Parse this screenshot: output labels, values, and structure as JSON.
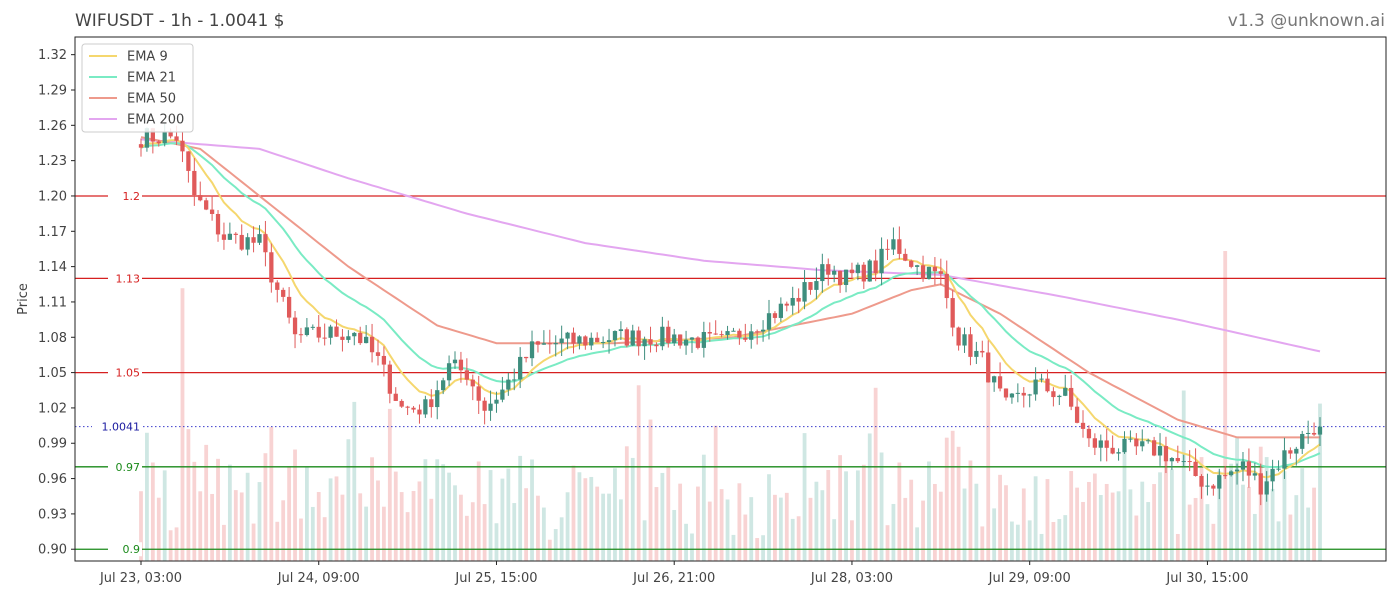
{
  "header": {
    "title": "WIFUSDT - 1h - 1.0041 $",
    "brand": "v1.3 @unknown.ai"
  },
  "chart_data": {
    "type": "candlestick",
    "symbol": "WIFUSDT",
    "interval": "1h",
    "last_price": 1.0041,
    "last_price_label": "1.0041",
    "ylabel": "Price",
    "ylim": [
      0.89,
      1.335
    ],
    "y_ticks": [
      "0.90",
      "0.93",
      "0.96",
      "0.99",
      "1.02",
      "1.05",
      "1.08",
      "1.11",
      "1.14",
      "1.17",
      "1.20",
      "1.23",
      "1.26",
      "1.29",
      "1.32"
    ],
    "x_ticks": [
      {
        "index": 0,
        "label": "Jul 23, 03:00"
      },
      {
        "index": 30,
        "label": "Jul 24, 09:00"
      },
      {
        "index": 60,
        "label": "Jul 25, 15:00"
      },
      {
        "index": 90,
        "label": "Jul 26, 21:00"
      },
      {
        "index": 120,
        "label": "Jul 28, 03:00"
      },
      {
        "index": 150,
        "label": "Jul 29, 09:00"
      },
      {
        "index": 180,
        "label": "Jul 30, 15:00"
      }
    ],
    "candle_count": 200,
    "legend": [
      {
        "name": "EMA 9",
        "color": "#f5d76e"
      },
      {
        "name": "EMA 21",
        "color": "#7aebc4"
      },
      {
        "name": "EMA 50",
        "color": "#ee9a8c"
      },
      {
        "name": "EMA 200",
        "color": "#e3a6f0"
      }
    ],
    "levels": [
      {
        "value": 1.2,
        "label": "1.2",
        "color": "#d62020"
      },
      {
        "value": 1.13,
        "label": "1.13",
        "color": "#d62020"
      },
      {
        "value": 1.05,
        "label": "1.05",
        "color": "#d62020"
      },
      {
        "value": 0.97,
        "label": "0.97",
        "color": "#1a8a1a"
      },
      {
        "value": 0.9,
        "label": "0.9",
        "color": "#1a8a1a"
      }
    ],
    "colors": {
      "up": "#3e8e7e",
      "down": "#e05a5a",
      "vol_up": "#cfe7e3",
      "vol_down": "#f8d3d3",
      "last_line": "#3b3bcc"
    },
    "close_path": [
      [
        0,
        1.25
      ],
      [
        6,
        1.25
      ],
      [
        9,
        1.2
      ],
      [
        14,
        1.165
      ],
      [
        20,
        1.16
      ],
      [
        26,
        1.08
      ],
      [
        36,
        1.085
      ],
      [
        40,
        1.06
      ],
      [
        44,
        1.02
      ],
      [
        48,
        1.02
      ],
      [
        52,
        1.055
      ],
      [
        55,
        1.05
      ],
      [
        58,
        1.02
      ],
      [
        61,
        1.035
      ],
      [
        66,
        1.07
      ],
      [
        70,
        1.075
      ],
      [
        80,
        1.08
      ],
      [
        90,
        1.08
      ],
      [
        98,
        1.075
      ],
      [
        110,
        1.11
      ],
      [
        116,
        1.14
      ],
      [
        119,
        1.13
      ],
      [
        124,
        1.14
      ],
      [
        127,
        1.16
      ],
      [
        131,
        1.14
      ],
      [
        135,
        1.13
      ],
      [
        138,
        1.08
      ],
      [
        142,
        1.06
      ],
      [
        146,
        1.02
      ],
      [
        151,
        1.04
      ],
      [
        156,
        1.03
      ],
      [
        160,
        0.99
      ],
      [
        166,
        0.985
      ],
      [
        172,
        0.985
      ],
      [
        176,
        0.97
      ],
      [
        180,
        0.955
      ],
      [
        186,
        0.97
      ],
      [
        189,
        0.955
      ],
      [
        193,
        0.98
      ],
      [
        198,
        1.005
      ],
      [
        199,
        1.0041
      ]
    ],
    "ema_end": {
      "ema9": 0.995,
      "ema21": 0.987,
      "ema50": 0.995,
      "ema200": 1.068
    },
    "ema200_path": [
      [
        0,
        1.248
      ],
      [
        20,
        1.24
      ],
      [
        35,
        1.215
      ],
      [
        55,
        1.185
      ],
      [
        75,
        1.16
      ],
      [
        95,
        1.145
      ],
      [
        115,
        1.137
      ],
      [
        135,
        1.133
      ],
      [
        155,
        1.115
      ],
      [
        175,
        1.095
      ],
      [
        199,
        1.068
      ]
    ],
    "ema50_path": [
      [
        0,
        1.25
      ],
      [
        10,
        1.24
      ],
      [
        20,
        1.2
      ],
      [
        35,
        1.14
      ],
      [
        50,
        1.09
      ],
      [
        60,
        1.075
      ],
      [
        80,
        1.075
      ],
      [
        100,
        1.08
      ],
      [
        120,
        1.1
      ],
      [
        130,
        1.12
      ],
      [
        135,
        1.125
      ],
      [
        145,
        1.1
      ],
      [
        160,
        1.05
      ],
      [
        175,
        1.01
      ],
      [
        185,
        0.995
      ],
      [
        199,
        0.995
      ]
    ]
  }
}
